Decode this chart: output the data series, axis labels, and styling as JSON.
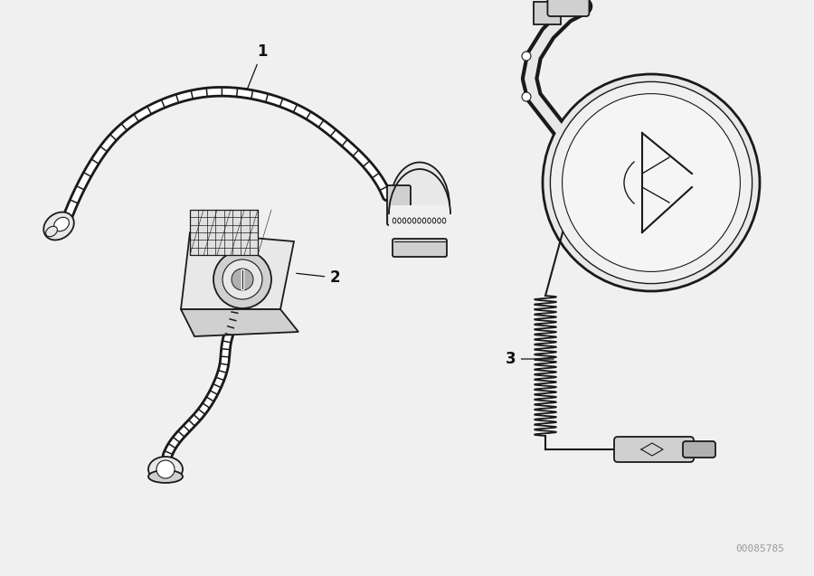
{
  "background_color": "#f0f0f0",
  "line_color": "#1a1a1a",
  "fill_light": "#e8e8e8",
  "fill_mid": "#d0d0d0",
  "fill_dark": "#b0b0b0",
  "label_color": "#111111",
  "watermark": "00085785",
  "watermark_color": "#999999",
  "figsize": [
    9.0,
    6.37
  ],
  "dpi": 100,
  "label_fontsize": 12
}
